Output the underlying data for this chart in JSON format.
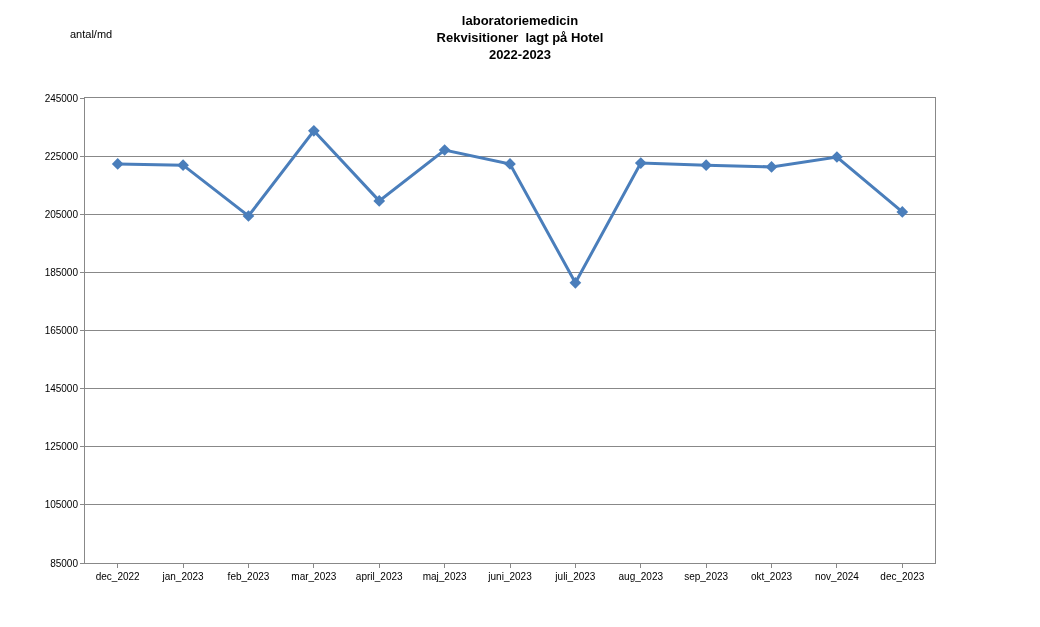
{
  "chart_data": {
    "type": "line",
    "title": "laboratoriemedicin\nRekvisitioner  lagt på Hotel\n2022-2023",
    "ylabel": "antal/md",
    "categories": [
      "dec_2022",
      "jan_2023",
      "feb_2023",
      "mar_2023",
      "april_2023",
      "maj_2023",
      "juni_2023",
      "juli_2023",
      "aug_2023",
      "sep_2023",
      "okt_2023",
      "nov_2024",
      "dec_2023"
    ],
    "series": [
      {
        "color": "#4a7ebb",
        "values": [
          222300,
          221900,
          204400,
          233700,
          209600,
          227100,
          222300,
          181400,
          222600,
          221900,
          221300,
          224700,
          205800
        ]
      }
    ],
    "ylim": [
      85000,
      245000
    ],
    "yticks": [
      85000,
      105000,
      125000,
      145000,
      165000,
      185000,
      205000,
      225000,
      245000
    ],
    "grid": "y",
    "legend": false,
    "marker": "diamond",
    "line_style": "solid"
  }
}
